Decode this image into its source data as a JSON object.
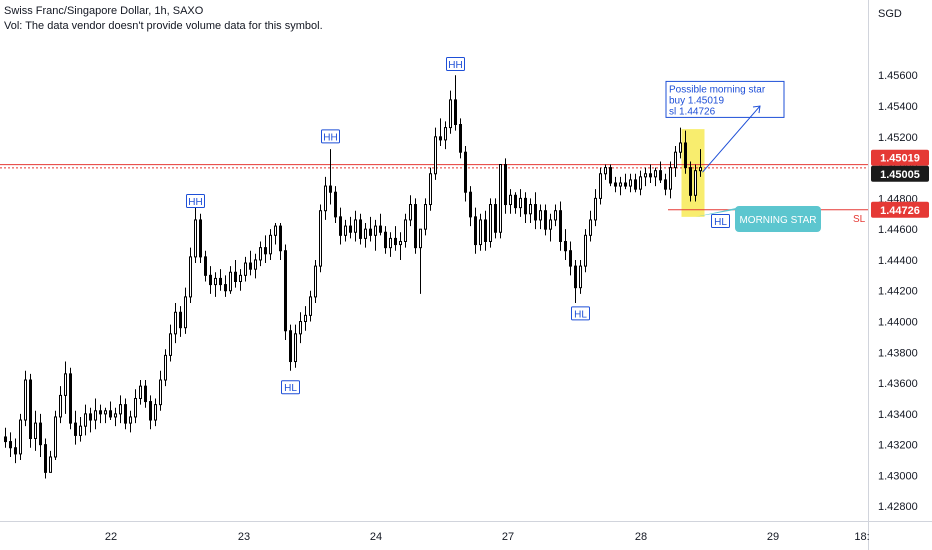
{
  "header": {
    "title": "Swiss Franc/Singapore Dollar, 1h, SAXO",
    "vol_note": "Vol: The data vendor doesn't provide volume data for this symbol."
  },
  "colors": {
    "up": "#ffffff",
    "down": "#000000",
    "wick": "#000000",
    "buy_line": "#e53935",
    "last_line": "#1a1a1a",
    "sl_line": "#e53935",
    "annotation_blue": "#1e4fd7",
    "highlight": "#f7ea55",
    "callout": "#5cc6cf"
  },
  "chart_data": {
    "type": "candlestick",
    "symbol": "Swiss Franc/Singapore Dollar",
    "interval": "1h",
    "exchange": "SAXO",
    "currency_label": "SGD",
    "x_tick_labels": [
      "22",
      "23",
      "24",
      "27",
      "28",
      "29",
      "18:"
    ],
    "y_tick_labels": [
      "1.45600",
      "1.45400",
      "1.45200",
      "1.45000",
      "1.44800",
      "1.44600",
      "1.44400",
      "1.44200",
      "1.44000",
      "1.43800",
      "1.43600",
      "1.43400",
      "1.43200",
      "1.43000",
      "1.42800"
    ],
    "y_tick_values": [
      1.456,
      1.454,
      1.452,
      1.45,
      1.448,
      1.446,
      1.444,
      1.442,
      1.44,
      1.438,
      1.436,
      1.434,
      1.432,
      1.43,
      1.428
    ],
    "ylim": [
      1.4273,
      1.4579
    ],
    "grid": false,
    "candles_ohlc": [
      [
        1.4325,
        1.4331,
        1.4318,
        1.4322
      ],
      [
        1.4322,
        1.4328,
        1.4312,
        1.4318
      ],
      [
        1.4318,
        1.4324,
        1.4308,
        1.4314
      ],
      [
        1.4314,
        1.434,
        1.431,
        1.4336
      ],
      [
        1.4336,
        1.4368,
        1.4332,
        1.4362
      ],
      [
        1.4362,
        1.4366,
        1.4318,
        1.4324
      ],
      [
        1.4324,
        1.4342,
        1.4316,
        1.4334
      ],
      [
        1.4334,
        1.434,
        1.4312,
        1.432
      ],
      [
        1.432,
        1.4324,
        1.4298,
        1.4302
      ],
      [
        1.4302,
        1.4316,
        1.4302,
        1.4312
      ],
      [
        1.4312,
        1.4342,
        1.431,
        1.4338
      ],
      [
        1.4338,
        1.4358,
        1.4334,
        1.4352
      ],
      [
        1.4352,
        1.4374,
        1.434,
        1.4366
      ],
      [
        1.4366,
        1.437,
        1.433,
        1.4334
      ],
      [
        1.4334,
        1.4342,
        1.432,
        1.4326
      ],
      [
        1.4326,
        1.4338,
        1.4322,
        1.4332
      ],
      [
        1.4332,
        1.4346,
        1.4326,
        1.434
      ],
      [
        1.434,
        1.4344,
        1.4328,
        1.4336
      ],
      [
        1.4336,
        1.435,
        1.433,
        1.4342
      ],
      [
        1.4342,
        1.4346,
        1.4334,
        1.434
      ],
      [
        1.434,
        1.4344,
        1.4334,
        1.4342
      ],
      [
        1.4342,
        1.4348,
        1.4336,
        1.4338
      ],
      [
        1.4338,
        1.4344,
        1.4332,
        1.434
      ],
      [
        1.434,
        1.4352,
        1.4334,
        1.4346
      ],
      [
        1.4346,
        1.435,
        1.433,
        1.4334
      ],
      [
        1.4334,
        1.4342,
        1.4328,
        1.4338
      ],
      [
        1.4338,
        1.4356,
        1.4334,
        1.435
      ],
      [
        1.435,
        1.4362,
        1.4346,
        1.4358
      ],
      [
        1.4358,
        1.4362,
        1.4344,
        1.4348
      ],
      [
        1.4348,
        1.4352,
        1.433,
        1.4336
      ],
      [
        1.4336,
        1.435,
        1.4332,
        1.4346
      ],
      [
        1.4346,
        1.4368,
        1.4342,
        1.4362
      ],
      [
        1.4362,
        1.4382,
        1.4358,
        1.4378
      ],
      [
        1.4378,
        1.4398,
        1.4374,
        1.4392
      ],
      [
        1.4392,
        1.4412,
        1.4386,
        1.4406
      ],
      [
        1.4406,
        1.441,
        1.439,
        1.4396
      ],
      [
        1.4396,
        1.4422,
        1.4392,
        1.4416
      ],
      [
        1.4416,
        1.4448,
        1.4412,
        1.4442
      ],
      [
        1.4442,
        1.4474,
        1.4438,
        1.4466
      ],
      [
        1.4466,
        1.447,
        1.4438,
        1.4442
      ],
      [
        1.4442,
        1.4446,
        1.4426,
        1.443
      ],
      [
        1.443,
        1.4436,
        1.4418,
        1.4424
      ],
      [
        1.4424,
        1.4432,
        1.4416,
        1.4428
      ],
      [
        1.4428,
        1.4434,
        1.442,
        1.4424
      ],
      [
        1.4424,
        1.443,
        1.4416,
        1.442
      ],
      [
        1.442,
        1.4436,
        1.4418,
        1.4432
      ],
      [
        1.4432,
        1.444,
        1.4422,
        1.4426
      ],
      [
        1.4426,
        1.4434,
        1.442,
        1.443
      ],
      [
        1.443,
        1.4442,
        1.4426,
        1.4438
      ],
      [
        1.4438,
        1.4446,
        1.443,
        1.4434
      ],
      [
        1.4434,
        1.4444,
        1.4428,
        1.444
      ],
      [
        1.444,
        1.4452,
        1.4436,
        1.4448
      ],
      [
        1.4448,
        1.4456,
        1.4438,
        1.4444
      ],
      [
        1.4444,
        1.446,
        1.444,
        1.4456
      ],
      [
        1.4456,
        1.4464,
        1.445,
        1.4462
      ],
      [
        1.4462,
        1.4464,
        1.444,
        1.4446
      ],
      [
        1.4446,
        1.445,
        1.4388,
        1.4394
      ],
      [
        1.4394,
        1.4398,
        1.4368,
        1.4374
      ],
      [
        1.4374,
        1.4398,
        1.437,
        1.4392
      ],
      [
        1.4392,
        1.4406,
        1.4386,
        1.44
      ],
      [
        1.44,
        1.441,
        1.4394,
        1.4404
      ],
      [
        1.4404,
        1.442,
        1.44,
        1.4416
      ],
      [
        1.4416,
        1.444,
        1.4412,
        1.4436
      ],
      [
        1.4436,
        1.4476,
        1.4432,
        1.4472
      ],
      [
        1.4472,
        1.4494,
        1.4466,
        1.4488
      ],
      [
        1.4488,
        1.4512,
        1.4476,
        1.4484
      ],
      [
        1.4484,
        1.4488,
        1.4464,
        1.4468
      ],
      [
        1.4468,
        1.4474,
        1.445,
        1.4456
      ],
      [
        1.4456,
        1.4466,
        1.4452,
        1.4462
      ],
      [
        1.4462,
        1.4468,
        1.4454,
        1.4458
      ],
      [
        1.4458,
        1.4472,
        1.4452,
        1.4466
      ],
      [
        1.4466,
        1.447,
        1.445,
        1.4454
      ],
      [
        1.4454,
        1.4464,
        1.4448,
        1.446
      ],
      [
        1.446,
        1.4468,
        1.4452,
        1.4456
      ],
      [
        1.4456,
        1.4466,
        1.4446,
        1.4462
      ],
      [
        1.4462,
        1.447,
        1.4456,
        1.4458
      ],
      [
        1.4458,
        1.4462,
        1.4444,
        1.4448
      ],
      [
        1.4448,
        1.4458,
        1.4442,
        1.4454
      ],
      [
        1.4454,
        1.4462,
        1.4446,
        1.445
      ],
      [
        1.445,
        1.4458,
        1.444,
        1.4452
      ],
      [
        1.4452,
        1.447,
        1.4448,
        1.4466
      ],
      [
        1.4466,
        1.4482,
        1.4462,
        1.4476
      ],
      [
        1.4476,
        1.448,
        1.4444,
        1.4448
      ],
      [
        1.4448,
        1.4452,
        1.4418,
        1.446
      ],
      [
        1.446,
        1.448,
        1.4456,
        1.4476
      ],
      [
        1.4476,
        1.45,
        1.4472,
        1.4496
      ],
      [
        1.4496,
        1.4526,
        1.4492,
        1.452
      ],
      [
        1.452,
        1.4532,
        1.4514,
        1.4518
      ],
      [
        1.4518,
        1.453,
        1.4512,
        1.4526
      ],
      [
        1.4526,
        1.455,
        1.4522,
        1.4544
      ],
      [
        1.4544,
        1.456,
        1.4524,
        1.4528
      ],
      [
        1.4528,
        1.4532,
        1.4506,
        1.451
      ],
      [
        1.451,
        1.4514,
        1.4478,
        1.4484
      ],
      [
        1.4484,
        1.4488,
        1.4462,
        1.4468
      ],
      [
        1.4468,
        1.4474,
        1.4444,
        1.445
      ],
      [
        1.445,
        1.447,
        1.4446,
        1.4466
      ],
      [
        1.4466,
        1.4472,
        1.4446,
        1.4452
      ],
      [
        1.4452,
        1.448,
        1.4448,
        1.4476
      ],
      [
        1.4476,
        1.448,
        1.4454,
        1.4458
      ],
      [
        1.4458,
        1.4502,
        1.4454,
        1.4502
      ],
      [
        1.4502,
        1.4506,
        1.447,
        1.4476
      ],
      [
        1.4476,
        1.4486,
        1.447,
        1.4482
      ],
      [
        1.4482,
        1.4484,
        1.447,
        1.4474
      ],
      [
        1.4474,
        1.4486,
        1.4468,
        1.448
      ],
      [
        1.448,
        1.4484,
        1.4464,
        1.447
      ],
      [
        1.447,
        1.448,
        1.4464,
        1.4476
      ],
      [
        1.4476,
        1.4484,
        1.446,
        1.4466
      ],
      [
        1.4466,
        1.4476,
        1.446,
        1.4472
      ],
      [
        1.4472,
        1.4476,
        1.4456,
        1.446
      ],
      [
        1.446,
        1.447,
        1.4452,
        1.4466
      ],
      [
        1.4466,
        1.4476,
        1.4462,
        1.4472
      ],
      [
        1.4472,
        1.4478,
        1.4446,
        1.4452
      ],
      [
        1.4452,
        1.446,
        1.444,
        1.4446
      ],
      [
        1.4446,
        1.4452,
        1.443,
        1.4436
      ],
      [
        1.4436,
        1.444,
        1.4412,
        1.4422
      ],
      [
        1.4422,
        1.444,
        1.4418,
        1.4436
      ],
      [
        1.4436,
        1.446,
        1.4432,
        1.4456
      ],
      [
        1.4456,
        1.4472,
        1.4452,
        1.4466
      ],
      [
        1.4466,
        1.4486,
        1.4462,
        1.448
      ],
      [
        1.448,
        1.45,
        1.4476,
        1.4496
      ],
      [
        1.4496,
        1.4502,
        1.4492,
        1.45
      ],
      [
        1.45,
        1.4502,
        1.4488,
        1.449
      ],
      [
        1.449,
        1.4494,
        1.4484,
        1.4488
      ],
      [
        1.4488,
        1.4494,
        1.4482,
        1.449
      ],
      [
        1.449,
        1.4496,
        1.4486,
        1.4488
      ],
      [
        1.4488,
        1.4496,
        1.4484,
        1.4492
      ],
      [
        1.4492,
        1.4496,
        1.4484,
        1.4486
      ],
      [
        1.4486,
        1.4498,
        1.4482,
        1.4494
      ],
      [
        1.4494,
        1.45,
        1.4488,
        1.4496
      ],
      [
        1.4496,
        1.4502,
        1.449,
        1.4494
      ],
      [
        1.4494,
        1.45,
        1.4488,
        1.4498
      ],
      [
        1.4498,
        1.4504,
        1.449,
        1.4492
      ],
      [
        1.4492,
        1.4496,
        1.4482,
        1.4486
      ],
      [
        1.4486,
        1.4504,
        1.448,
        1.45
      ],
      [
        1.45,
        1.4514,
        1.4494,
        1.451
      ],
      [
        1.451,
        1.4526,
        1.4506,
        1.4516
      ],
      [
        1.4516,
        1.4524,
        1.4496,
        1.45
      ],
      [
        1.45,
        1.4504,
        1.4478,
        1.4482
      ],
      [
        1.4482,
        1.4502,
        1.4478,
        1.4498
      ],
      [
        1.4498,
        1.4512,
        1.4494,
        1.45
      ]
    ],
    "annotations": [
      {
        "label": "HH",
        "price": 1.4478,
        "candle": 38
      },
      {
        "label": "HH",
        "price": 1.452,
        "candle": 65
      },
      {
        "label": "HH",
        "price": 1.4567,
        "candle": 90
      },
      {
        "label": "HL",
        "price": 1.4357,
        "candle": 57
      },
      {
        "label": "HL",
        "price": 1.4405,
        "candle": 115
      },
      {
        "label": "HL",
        "price": 1.4465,
        "candle": 143
      }
    ],
    "levels": [
      {
        "name": "buy",
        "price": 1.45019,
        "label": "1.45019"
      },
      {
        "name": "last",
        "price": 1.45005,
        "label": "1.45005"
      },
      {
        "name": "sl",
        "price": 1.44726,
        "label": "1.44726",
        "tag": "SL"
      }
    ],
    "note_lines": [
      "Possible morning star",
      "buy 1.45019",
      "sl 1.44726"
    ],
    "callout": "MORNING STAR"
  }
}
